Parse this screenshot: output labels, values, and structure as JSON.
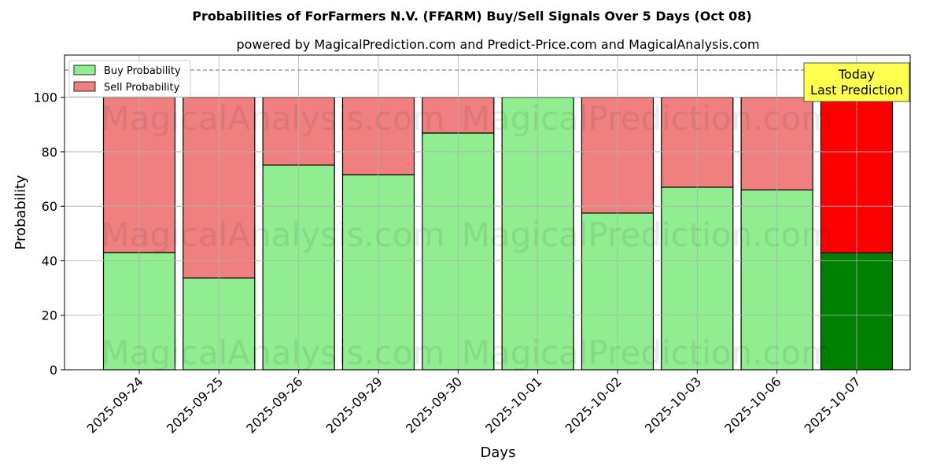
{
  "chart_data": {
    "type": "bar",
    "stacked": true,
    "title": "Probabilities of ForFarmers N.V. (FFARM) Buy/Sell Signals Over 5 Days (Oct 08)",
    "subtitle": "powered by MagicalPrediction.com and Predict-Price.com and MagicalAnalysis.com",
    "xlabel": "Days",
    "ylabel": "Probability",
    "ylim": [
      0,
      115.5
    ],
    "yticks": [
      0,
      20,
      40,
      60,
      80,
      100
    ],
    "grid": true,
    "reference_line": 110,
    "categories": [
      "2025-09-24",
      "2025-09-25",
      "2025-09-26",
      "2025-09-29",
      "2025-09-30",
      "2025-10-01",
      "2025-10-02",
      "2025-10-03",
      "2025-10-06",
      "2025-10-07"
    ],
    "series": [
      {
        "name": "Buy Probability",
        "color": "#90ee90",
        "highlight_color": "#008000",
        "values": [
          43.0,
          33.7,
          75.1,
          71.6,
          86.9,
          100.0,
          57.5,
          67.0,
          66.0,
          42.9
        ]
      },
      {
        "name": "Sell Probability",
        "color": "#f08080",
        "highlight_color": "#ff0000",
        "values": [
          57.0,
          66.3,
          24.9,
          28.4,
          13.1,
          0.0,
          42.5,
          33.0,
          34.0,
          57.1
        ]
      }
    ],
    "legend_position": "top-left",
    "annotation": {
      "line1": "Today",
      "line2": "Last Prediction",
      "color": "#ffff4d"
    },
    "watermarks": [
      "MagicalAnalysis.com",
      "MagicalPrediction.com"
    ]
  }
}
